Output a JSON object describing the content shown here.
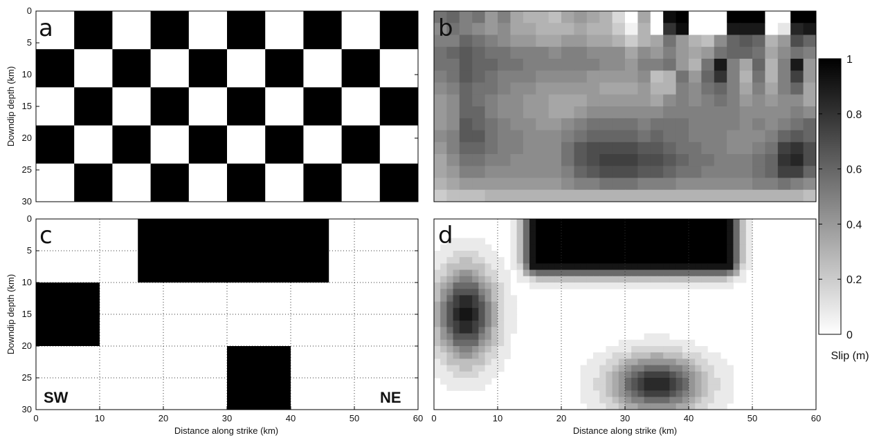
{
  "chart_data": [
    {
      "panel": "a",
      "type": "heatmap",
      "description_label": "a",
      "xlim": [
        0,
        60
      ],
      "ylim": [
        0,
        30
      ],
      "yaxis_inverted": true,
      "ylabel": "Downdip depth (km)",
      "xlabel": "",
      "y_ticks": [
        0,
        5,
        10,
        15,
        20,
        25,
        30
      ],
      "x_ticks": [],
      "checker_cell_km": [
        6,
        6
      ],
      "checker_cols": 10,
      "checker_rows": 5,
      "checker_first_cell_slip": 0
    },
    {
      "panel": "b",
      "type": "heatmap",
      "description_label": "b",
      "xlim": [
        0,
        60
      ],
      "ylim": [
        0,
        30
      ],
      "yaxis_inverted": true,
      "x_ticks": [],
      "y_ticks": [],
      "rows": [
        [
          0.55,
          0.6,
          0.5,
          0.55,
          0.4,
          0.5,
          0.35,
          0.3,
          0.3,
          0.25,
          0.35,
          0.4,
          0.35,
          0.3,
          0.15,
          0.0,
          0.35,
          0.0,
          0.95,
          1.0,
          0.0,
          0.0,
          0.0,
          1.0,
          1.0,
          1.0,
          0.0,
          0.0,
          1.0,
          1.0
        ],
        [
          0.45,
          0.55,
          0.5,
          0.45,
          0.4,
          0.45,
          0.35,
          0.35,
          0.3,
          0.3,
          0.3,
          0.35,
          0.3,
          0.3,
          0.2,
          0.05,
          0.3,
          0.0,
          0.8,
          0.95,
          0.0,
          0.0,
          0.0,
          0.9,
          0.9,
          0.9,
          0.0,
          0.1,
          0.85,
          0.9
        ],
        [
          0.5,
          0.5,
          0.6,
          0.55,
          0.5,
          0.45,
          0.4,
          0.4,
          0.35,
          0.35,
          0.4,
          0.4,
          0.35,
          0.35,
          0.3,
          0.2,
          0.3,
          0.35,
          0.55,
          0.4,
          0.3,
          0.25,
          0.45,
          0.6,
          0.65,
          0.6,
          0.3,
          0.4,
          0.7,
          0.6
        ],
        [
          0.55,
          0.6,
          0.65,
          0.6,
          0.55,
          0.55,
          0.5,
          0.5,
          0.5,
          0.45,
          0.5,
          0.5,
          0.45,
          0.45,
          0.45,
          0.35,
          0.45,
          0.4,
          0.5,
          0.4,
          0.35,
          0.4,
          0.55,
          0.6,
          0.6,
          0.55,
          0.35,
          0.45,
          0.55,
          0.5
        ],
        [
          0.55,
          0.55,
          0.65,
          0.6,
          0.6,
          0.55,
          0.55,
          0.5,
          0.5,
          0.5,
          0.5,
          0.5,
          0.5,
          0.45,
          0.45,
          0.4,
          0.5,
          0.5,
          0.55,
          0.4,
          0.3,
          0.55,
          0.9,
          0.5,
          0.35,
          0.6,
          0.3,
          0.5,
          0.9,
          0.4
        ],
        [
          0.5,
          0.55,
          0.65,
          0.6,
          0.55,
          0.5,
          0.5,
          0.5,
          0.45,
          0.45,
          0.45,
          0.45,
          0.4,
          0.4,
          0.4,
          0.4,
          0.45,
          0.25,
          0.3,
          0.55,
          0.4,
          0.6,
          0.8,
          0.5,
          0.3,
          0.55,
          0.3,
          0.5,
          0.75,
          0.4
        ],
        [
          0.45,
          0.5,
          0.6,
          0.55,
          0.55,
          0.5,
          0.45,
          0.45,
          0.4,
          0.4,
          0.4,
          0.4,
          0.4,
          0.35,
          0.35,
          0.35,
          0.4,
          0.3,
          0.3,
          0.5,
          0.45,
          0.55,
          0.6,
          0.5,
          0.35,
          0.5,
          0.35,
          0.5,
          0.6,
          0.35
        ],
        [
          0.4,
          0.45,
          0.6,
          0.55,
          0.5,
          0.45,
          0.45,
          0.4,
          0.4,
          0.35,
          0.35,
          0.35,
          0.4,
          0.4,
          0.4,
          0.4,
          0.4,
          0.35,
          0.45,
          0.5,
          0.45,
          0.5,
          0.55,
          0.5,
          0.4,
          0.45,
          0.4,
          0.45,
          0.45,
          0.35
        ],
        [
          0.4,
          0.45,
          0.6,
          0.6,
          0.5,
          0.45,
          0.45,
          0.4,
          0.4,
          0.35,
          0.35,
          0.4,
          0.45,
          0.45,
          0.45,
          0.45,
          0.45,
          0.45,
          0.5,
          0.5,
          0.5,
          0.5,
          0.5,
          0.5,
          0.45,
          0.45,
          0.45,
          0.45,
          0.5,
          0.45
        ],
        [
          0.4,
          0.45,
          0.65,
          0.6,
          0.55,
          0.5,
          0.45,
          0.45,
          0.4,
          0.4,
          0.45,
          0.5,
          0.55,
          0.55,
          0.55,
          0.55,
          0.5,
          0.55,
          0.55,
          0.55,
          0.5,
          0.5,
          0.5,
          0.5,
          0.45,
          0.5,
          0.45,
          0.5,
          0.55,
          0.6
        ],
        [
          0.45,
          0.5,
          0.65,
          0.65,
          0.55,
          0.5,
          0.5,
          0.45,
          0.45,
          0.45,
          0.5,
          0.55,
          0.6,
          0.6,
          0.6,
          0.6,
          0.55,
          0.6,
          0.55,
          0.55,
          0.5,
          0.5,
          0.5,
          0.45,
          0.45,
          0.45,
          0.5,
          0.6,
          0.65,
          0.6
        ],
        [
          0.4,
          0.5,
          0.6,
          0.6,
          0.55,
          0.5,
          0.5,
          0.45,
          0.45,
          0.45,
          0.55,
          0.65,
          0.7,
          0.7,
          0.7,
          0.7,
          0.65,
          0.65,
          0.6,
          0.55,
          0.55,
          0.5,
          0.5,
          0.45,
          0.45,
          0.5,
          0.55,
          0.75,
          0.8,
          0.7
        ],
        [
          0.35,
          0.45,
          0.55,
          0.55,
          0.5,
          0.5,
          0.45,
          0.45,
          0.45,
          0.45,
          0.55,
          0.65,
          0.7,
          0.75,
          0.75,
          0.75,
          0.7,
          0.7,
          0.65,
          0.6,
          0.55,
          0.55,
          0.5,
          0.5,
          0.5,
          0.55,
          0.6,
          0.8,
          0.85,
          0.7
        ],
        [
          0.35,
          0.4,
          0.5,
          0.5,
          0.45,
          0.45,
          0.45,
          0.45,
          0.45,
          0.45,
          0.5,
          0.6,
          0.65,
          0.7,
          0.7,
          0.7,
          0.65,
          0.65,
          0.6,
          0.55,
          0.55,
          0.5,
          0.5,
          0.5,
          0.5,
          0.55,
          0.6,
          0.75,
          0.75,
          0.6
        ],
        [
          0.3,
          0.35,
          0.4,
          0.4,
          0.4,
          0.4,
          0.4,
          0.4,
          0.4,
          0.4,
          0.45,
          0.5,
          0.5,
          0.55,
          0.55,
          0.55,
          0.5,
          0.5,
          0.5,
          0.45,
          0.45,
          0.45,
          0.45,
          0.45,
          0.45,
          0.5,
          0.5,
          0.55,
          0.5,
          0.45
        ],
        [
          0.2,
          0.25,
          0.25,
          0.25,
          0.3,
          0.3,
          0.3,
          0.3,
          0.3,
          0.3,
          0.3,
          0.3,
          0.3,
          0.3,
          0.3,
          0.3,
          0.3,
          0.3,
          0.3,
          0.3,
          0.3,
          0.3,
          0.3,
          0.3,
          0.3,
          0.3,
          0.3,
          0.3,
          0.3,
          0.25
        ]
      ]
    },
    {
      "panel": "c",
      "type": "heatmap",
      "description_label": "c",
      "xlim": [
        0,
        60
      ],
      "ylim": [
        0,
        30
      ],
      "yaxis_inverted": true,
      "xlabel": "Distance along strike (km)",
      "ylabel": "Downdip depth (km)",
      "x_ticks": [
        0,
        10,
        20,
        30,
        40,
        50,
        60
      ],
      "y_ticks": [
        0,
        5,
        10,
        15,
        20,
        25,
        30
      ],
      "grid": "dotted",
      "grid_x": [
        10,
        20,
        30,
        40,
        50
      ],
      "grid_y": [
        5,
        10,
        15,
        20,
        25
      ],
      "patches": [
        {
          "x": [
            16,
            46
          ],
          "y": [
            0,
            10
          ],
          "slip": 1
        },
        {
          "x": [
            0,
            10
          ],
          "y": [
            10,
            20
          ],
          "slip": 1
        },
        {
          "x": [
            30,
            40
          ],
          "y": [
            20,
            30
          ],
          "slip": 1
        }
      ],
      "annotations": [
        "SW",
        "NE"
      ]
    },
    {
      "panel": "d",
      "type": "heatmap",
      "description_label": "d",
      "xlim": [
        0,
        60
      ],
      "ylim": [
        0,
        30
      ],
      "yaxis_inverted": true,
      "xlabel": "Distance along strike (km)",
      "x_ticks": [
        0,
        10,
        20,
        30,
        40,
        50,
        60
      ],
      "y_ticks": [],
      "grid": "dotted",
      "grid_x": [
        10,
        20,
        30,
        40,
        50
      ],
      "blobs": [
        {
          "cx": 31,
          "cy": 2.5,
          "hw": 15,
          "hh": 4.5,
          "peak": 1.0,
          "shape": "rect-soft"
        },
        {
          "cx": 5,
          "cy": 15,
          "rx": 5,
          "ry": 8,
          "peak": 0.92,
          "shape": "gauss"
        },
        {
          "cx": 35,
          "cy": 26,
          "rx": 8,
          "ry": 5,
          "peak": 0.85,
          "shape": "gauss"
        }
      ]
    }
  ],
  "colorbar": {
    "min": 0,
    "max": 1,
    "ticks": [
      "0",
      "0.2",
      "0.4",
      "0.6",
      "0.8",
      "1"
    ],
    "label": "Slip (m)",
    "colormap": [
      "#ffffff",
      "#000000"
    ]
  },
  "text": {
    "panel_a_letter": "a",
    "panel_b_letter": "b",
    "panel_c_letter": "c",
    "panel_d_letter": "d",
    "ylabel_a": "Downdip depth (km)",
    "ylabel_c": "Downdip depth (km)",
    "xlabel_c": "Distance along strike (km)",
    "xlabel_d": "Distance along strike (km)",
    "sw": "SW",
    "ne": "NE",
    "cb_label": "Slip (m)"
  }
}
